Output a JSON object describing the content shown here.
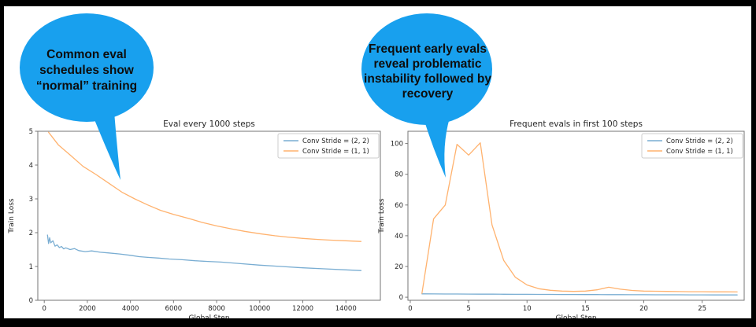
{
  "bubbles": [
    {
      "text": "Common eval\nschedules show\n“normal” training"
    },
    {
      "text": "Frequent early evals\nreveal problematic\ninstability followed by\nrecovery"
    }
  ],
  "colors": {
    "bubble_fill": "#18a0ee",
    "line_stride22": "#79add2",
    "line_stride11": "#ffb26e",
    "spine": "#767676",
    "chart_text": "#262626",
    "legend_border": "#cccccc",
    "frame": "#000000"
  },
  "chart_data": [
    {
      "type": "line",
      "title": "Eval every 1000 steps",
      "xlabel": "Global Step",
      "ylabel": "Train Loss",
      "xlim": [
        -300,
        15600
      ],
      "ylim": [
        0,
        5
      ],
      "xticks": [
        0,
        2000,
        4000,
        6000,
        8000,
        10000,
        12000,
        14000
      ],
      "yticks": [
        0,
        1,
        2,
        3,
        4,
        5
      ],
      "grid": false,
      "legend_position": "upper right",
      "series": [
        {
          "name": "Conv Stride =  (2, 2)",
          "color": "#79add2",
          "x": [
            150,
            200,
            250,
            300,
            400,
            500,
            600,
            700,
            800,
            900,
            1000,
            1200,
            1400,
            1600,
            1900,
            2200,
            2600,
            3000,
            3500,
            4000,
            4400,
            4800,
            5300,
            5800,
            6400,
            7000,
            7600,
            8200,
            9000,
            10000,
            11000,
            12000,
            13000,
            14000,
            14700
          ],
          "y": [
            1.93,
            1.68,
            1.85,
            1.7,
            1.76,
            1.6,
            1.64,
            1.56,
            1.59,
            1.52,
            1.55,
            1.5,
            1.53,
            1.47,
            1.44,
            1.46,
            1.42,
            1.4,
            1.37,
            1.33,
            1.29,
            1.27,
            1.25,
            1.22,
            1.2,
            1.17,
            1.15,
            1.13,
            1.09,
            1.04,
            1.0,
            0.96,
            0.93,
            0.9,
            0.88
          ]
        },
        {
          "name": "Conv Stride =  (1, 1)",
          "color": "#ffb26e",
          "x": [
            200,
            650,
            1200,
            1800,
            2400,
            3000,
            3600,
            4200,
            4800,
            5400,
            6000,
            6700,
            7300,
            8000,
            8700,
            9300,
            10000,
            10700,
            11300,
            12000,
            12700,
            13300,
            14000,
            14700
          ],
          "y": [
            4.97,
            4.6,
            4.3,
            3.96,
            3.72,
            3.46,
            3.2,
            3.0,
            2.82,
            2.66,
            2.54,
            2.42,
            2.31,
            2.2,
            2.11,
            2.04,
            1.97,
            1.91,
            1.87,
            1.83,
            1.8,
            1.78,
            1.76,
            1.74
          ]
        }
      ]
    },
    {
      "type": "line",
      "title": "Frequent evals in first 100 steps",
      "xlabel": "Global Step",
      "ylabel": "Train Loss",
      "xlim": [
        -0.2,
        28.6
      ],
      "ylim": [
        -2,
        108
      ],
      "xticks": [
        0,
        5,
        10,
        15,
        20,
        25
      ],
      "yticks": [
        0,
        20,
        40,
        60,
        80,
        100
      ],
      "grid": false,
      "legend_position": "upper right",
      "series": [
        {
          "name": "Conv Stride =  (2, 2)",
          "color": "#79add2",
          "x": [
            1,
            2,
            3,
            4,
            5,
            6,
            7,
            8,
            9,
            10,
            11,
            12,
            13,
            14,
            15,
            16,
            17,
            18,
            19,
            20,
            21,
            22,
            23,
            24,
            25,
            26,
            27,
            28
          ],
          "y": [
            2.2,
            2.15,
            2.1,
            2.1,
            2.05,
            2.0,
            2.0,
            1.95,
            1.9,
            1.9,
            1.85,
            1.85,
            1.8,
            1.8,
            1.75,
            1.75,
            1.7,
            1.7,
            1.65,
            1.65,
            1.6,
            1.6,
            1.6,
            1.55,
            1.55,
            1.5,
            1.5,
            1.5
          ]
        },
        {
          "name": "Conv Stride =  (1, 1)",
          "color": "#ffb26e",
          "x": [
            1,
            2,
            3,
            4,
            5,
            6,
            7,
            8,
            9,
            10,
            11,
            12,
            13,
            14,
            15,
            16,
            17,
            18,
            19,
            20,
            21,
            22,
            23,
            24,
            25,
            26,
            27,
            28
          ],
          "y": [
            2.5,
            51,
            60,
            99.5,
            92.5,
            100.5,
            47,
            24,
            13,
            8,
            5.5,
            4.5,
            4.0,
            3.8,
            4.0,
            4.8,
            6.5,
            5.2,
            4.4,
            4.0,
            3.9,
            3.8,
            3.7,
            3.6,
            3.6,
            3.5,
            3.5,
            3.4
          ]
        }
      ]
    }
  ]
}
